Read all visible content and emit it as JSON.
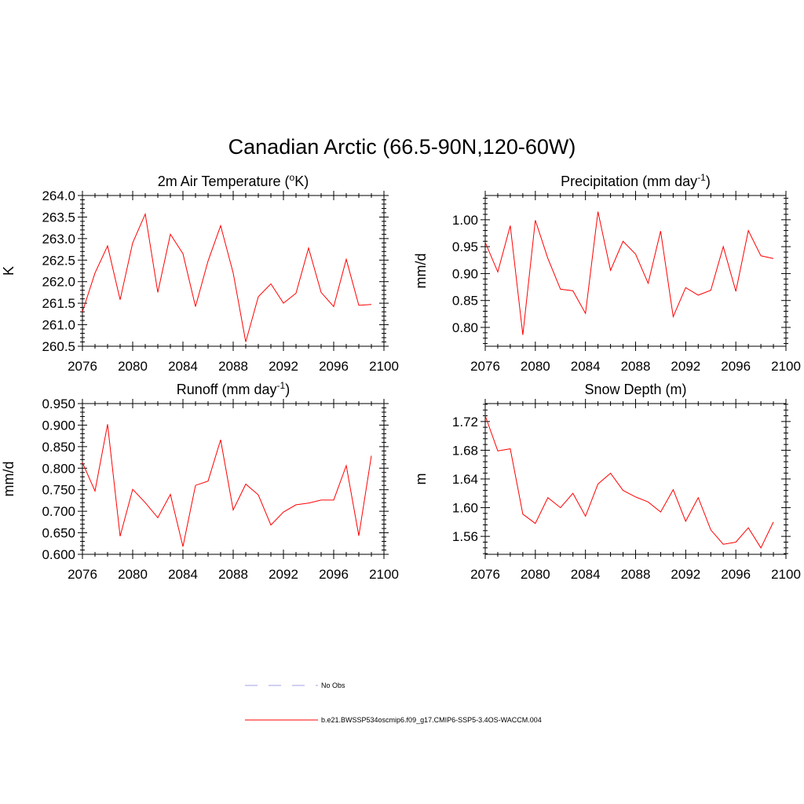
{
  "title": "Canadian Arctic (66.5-90N,120-60W)",
  "colors": {
    "model": "#ff0000",
    "obs": "#a0a0e6",
    "axis": "#000000"
  },
  "chart_data": [
    {
      "type": "line",
      "title_main": "2m Air Temperature (",
      "title_sup": "o",
      "title_tail": "K)",
      "ylabel": "K",
      "xlim": [
        2076,
        2100
      ],
      "ylim": [
        260.5,
        264.0
      ],
      "xticks": [
        2076,
        2080,
        2084,
        2088,
        2092,
        2096,
        2100
      ],
      "yticks": [
        "260.5",
        "261.0",
        "261.5",
        "262.0",
        "262.5",
        "263.0",
        "263.5",
        "264.0"
      ],
      "x": [
        2076,
        2077,
        2078,
        2079,
        2080,
        2081,
        2082,
        2083,
        2084,
        2085,
        2086,
        2087,
        2088,
        2089,
        2090,
        2091,
        2092,
        2093,
        2094,
        2095,
        2096,
        2097,
        2098,
        2099
      ],
      "values": [
        261.3,
        262.2,
        262.83,
        261.58,
        262.9,
        263.57,
        261.75,
        263.1,
        262.65,
        261.42,
        262.48,
        263.3,
        262.2,
        260.6,
        261.65,
        261.95,
        261.5,
        261.73,
        262.78,
        261.75,
        261.42,
        262.52,
        261.45,
        261.47
      ]
    },
    {
      "type": "line",
      "title_main": "Precipitation (mm day",
      "title_sup": "-1",
      "title_tail": ")",
      "ylabel": "mm/d",
      "xlim": [
        2076,
        2100
      ],
      "ylim": [
        0.765,
        1.045
      ],
      "xticks": [
        2076,
        2080,
        2084,
        2088,
        2092,
        2096,
        2100
      ],
      "yticks": [
        "0.80",
        "0.85",
        "0.90",
        "0.95",
        "1.00"
      ],
      "x": [
        2076,
        2077,
        2078,
        2079,
        2080,
        2081,
        2082,
        2083,
        2084,
        2085,
        2086,
        2087,
        2088,
        2089,
        2090,
        2091,
        2092,
        2093,
        2094,
        2095,
        2096,
        2097,
        2098,
        2099
      ],
      "values": [
        0.958,
        0.903,
        0.989,
        0.786,
        0.999,
        0.928,
        0.871,
        0.868,
        0.826,
        1.015,
        0.906,
        0.96,
        0.936,
        0.882,
        0.979,
        0.82,
        0.874,
        0.86,
        0.869,
        0.95,
        0.867,
        0.98,
        0.933,
        0.928
      ]
    },
    {
      "type": "line",
      "title_main": "Runoff (mm day",
      "title_sup": "-1",
      "title_tail": ")",
      "ylabel": "mm/d",
      "xlim": [
        2076,
        2100
      ],
      "ylim": [
        0.6,
        0.95
      ],
      "xticks": [
        2076,
        2080,
        2084,
        2088,
        2092,
        2096,
        2100
      ],
      "yticks": [
        "0.600",
        "0.650",
        "0.700",
        "0.750",
        "0.800",
        "0.850",
        "0.900",
        "0.950"
      ],
      "x": [
        2076,
        2077,
        2078,
        2079,
        2080,
        2081,
        2082,
        2083,
        2084,
        2085,
        2086,
        2087,
        2088,
        2089,
        2090,
        2091,
        2092,
        2093,
        2094,
        2095,
        2096,
        2097,
        2098,
        2099
      ],
      "values": [
        0.813,
        0.747,
        0.902,
        0.642,
        0.751,
        0.72,
        0.685,
        0.739,
        0.618,
        0.76,
        0.77,
        0.866,
        0.703,
        0.763,
        0.738,
        0.668,
        0.698,
        0.715,
        0.719,
        0.726,
        0.726,
        0.806,
        0.643,
        0.829
      ]
    },
    {
      "type": "line",
      "title_main": "Snow Depth (m)",
      "title_sup": "",
      "title_tail": "",
      "ylabel": "m",
      "xlim": [
        2076,
        2100
      ],
      "ylim": [
        1.535,
        1.745
      ],
      "xticks": [
        2076,
        2080,
        2084,
        2088,
        2092,
        2096,
        2100
      ],
      "yticks": [
        "1.56",
        "1.60",
        "1.64",
        "1.68",
        "1.72"
      ],
      "x": [
        2076,
        2077,
        2078,
        2079,
        2080,
        2081,
        2082,
        2083,
        2084,
        2085,
        2086,
        2087,
        2088,
        2089,
        2090,
        2091,
        2092,
        2093,
        2094,
        2095,
        2096,
        2097,
        2098,
        2099
      ],
      "values": [
        1.728,
        1.679,
        1.682,
        1.591,
        1.578,
        1.614,
        1.6,
        1.62,
        1.588,
        1.633,
        1.648,
        1.624,
        1.615,
        1.608,
        1.594,
        1.625,
        1.581,
        1.614,
        1.569,
        1.549,
        1.552,
        1.572,
        1.544,
        1.58
      ]
    }
  ],
  "legend": [
    {
      "label": "No Obs",
      "style": "dashed",
      "color": "#a0a0e6"
    },
    {
      "label": "b.e21.BWSSP534oscmip6.f09_g17.CMIP6-SSP5-3.4OS-WACCM.004",
      "style": "solid",
      "color": "#ff0000"
    }
  ]
}
